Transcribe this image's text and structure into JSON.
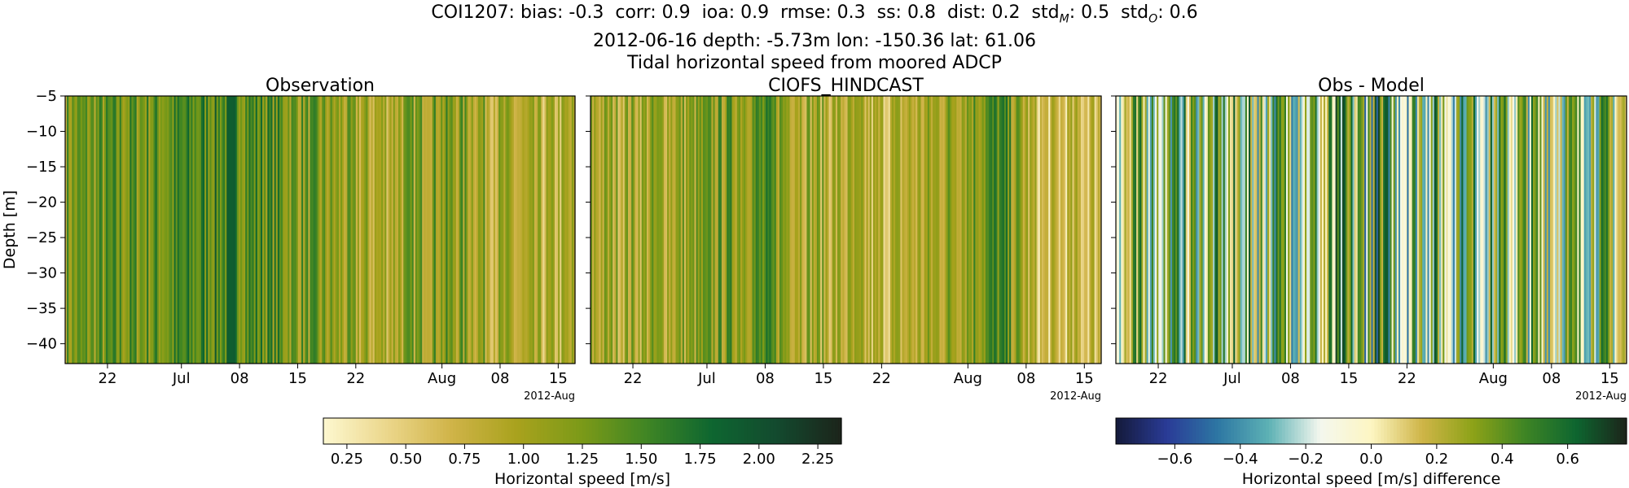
{
  "title": {
    "station": "COI1207:",
    "stats": [
      {
        "label": "bias:",
        "value": "-0.3"
      },
      {
        "label": "corr:",
        "value": "0.9"
      },
      {
        "label": "ioa:",
        "value": "0.9"
      },
      {
        "label": "rmse:",
        "value": "0.3"
      },
      {
        "label": "ss:",
        "value": "0.8"
      },
      {
        "label": "dist:",
        "value": "0.2"
      }
    ],
    "std_m": {
      "base": "std",
      "sub": "M",
      "value": ": 0.5"
    },
    "std_o": {
      "base": "std",
      "sub": "O",
      "value": ": 0.6"
    },
    "line2": "2012-06-16 depth: -5.73m lon: -150.36 lat: 61.06",
    "line3": "Tidal horizontal speed from moored ADCP"
  },
  "chart_data": [
    {
      "type": "heatmap",
      "title": "Observation",
      "ylabel": "Depth [m]",
      "x_tick_labels": [
        "22",
        "Jul",
        "08",
        "15",
        "22",
        "Aug",
        "08",
        "15"
      ],
      "x_offset_label": "2012-Aug",
      "x_range": [
        "2012-06-16",
        "2012-08-18"
      ],
      "y_ticks": [
        -5,
        -10,
        -15,
        -20,
        -25,
        -30,
        -35,
        -40
      ],
      "ylim": [
        -42.8,
        -5
      ],
      "colormap": "speed",
      "clim": [
        0.15,
        2.35
      ],
      "band_profile": [
        [
          0,
          1.2
        ],
        [
          0.2,
          1.35
        ],
        [
          0.33,
          1.55
        ],
        [
          0.45,
          1.25
        ],
        [
          0.6,
          0.9
        ],
        [
          0.72,
          1.2
        ],
        [
          0.8,
          1.1
        ],
        [
          0.9,
          0.75
        ],
        [
          1,
          0.85
        ]
      ]
    },
    {
      "type": "heatmap",
      "title": "CIOFS_HINDCAST",
      "x_tick_labels": [
        "22",
        "Jul",
        "08",
        "15",
        "22",
        "Aug",
        "08",
        "15"
      ],
      "x_offset_label": "2012-Aug",
      "x_range": [
        "2012-06-16",
        "2012-08-18"
      ],
      "y_ticks": [
        -5,
        -10,
        -15,
        -20,
        -25,
        -30,
        -35,
        -40
      ],
      "ylim": [
        -42.8,
        -5
      ],
      "colormap": "speed",
      "clim": [
        0.15,
        2.35
      ],
      "band_profile": [
        [
          0,
          0.95
        ],
        [
          0.2,
          1.05
        ],
        [
          0.33,
          1.35
        ],
        [
          0.45,
          0.95
        ],
        [
          0.55,
          0.75
        ],
        [
          0.65,
          0.9
        ],
        [
          0.8,
          1.45
        ],
        [
          0.88,
          0.6
        ],
        [
          1,
          0.75
        ]
      ]
    },
    {
      "type": "heatmap",
      "title": "Obs - Model",
      "x_tick_labels": [
        "22",
        "Jul",
        "08",
        "15",
        "22",
        "Aug",
        "08",
        "15"
      ],
      "x_offset_label": "2012-Aug",
      "x_range": [
        "2012-06-16",
        "2012-08-18"
      ],
      "y_ticks": [
        -5,
        -10,
        -15,
        -20,
        -25,
        -30,
        -35,
        -40
      ],
      "ylim": [
        -42.8,
        -5
      ],
      "colormap": "diff",
      "clim": [
        -0.78,
        0.78
      ],
      "band_profile": [
        [
          0,
          0.15
        ],
        [
          0.3,
          0.2
        ],
        [
          0.5,
          0.3
        ],
        [
          0.7,
          0.2
        ],
        [
          1,
          0.15
        ]
      ]
    }
  ],
  "colorbars": [
    {
      "label": "Horizontal speed [m/s]",
      "colormap": "speed",
      "range": [
        0.15,
        2.35
      ],
      "ticks": [
        0.25,
        0.5,
        0.75,
        1.0,
        1.25,
        1.5,
        1.75,
        2.0,
        2.25
      ],
      "tick_labels": [
        "0.25",
        "0.50",
        "0.75",
        "1.00",
        "1.25",
        "1.50",
        "1.75",
        "2.00",
        "2.25"
      ]
    },
    {
      "label": "Horizontal speed [m/s] difference",
      "colormap": "diff",
      "range": [
        -0.78,
        0.78
      ],
      "ticks": [
        -0.6,
        -0.4,
        -0.2,
        0.0,
        0.2,
        0.4,
        0.6
      ],
      "tick_labels": [
        "−0.6",
        "−0.4",
        "−0.2",
        "0.0",
        "0.2",
        "0.4",
        "0.6"
      ]
    }
  ],
  "colormaps": {
    "speed": [
      "#fdf8d0",
      "#ebd68a",
      "#cfb347",
      "#a8a21d",
      "#7b9a18",
      "#3f8524",
      "#0e6630",
      "#134a2f",
      "#1c241a"
    ],
    "diff": [
      "#141a3a",
      "#2a3b97",
      "#2d77a3",
      "#5eb2b5",
      "#f4f7ee",
      "#fdf6c3",
      "#cfb547",
      "#8ca218",
      "#3f8524",
      "#0e6630",
      "#1c241a"
    ]
  }
}
